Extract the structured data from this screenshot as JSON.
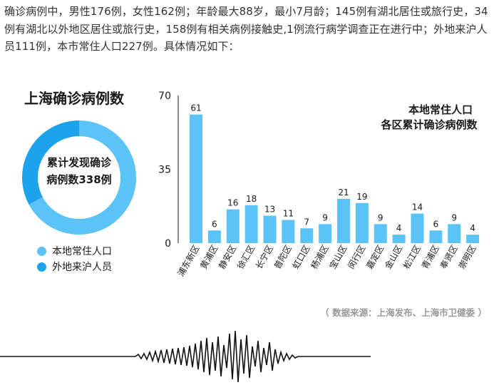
{
  "article": {
    "intro_text": "确诊病例中，男性176例，女性162例；年龄最大88岁，最小7月龄；145例有湖北居住或旅行史，34例有湖北以外地区居住或旅行史，158例有相关病例接触史,1例流行病学调查正在进行中；外地来沪人员111例，本市常住人口227例。具体情况如下："
  },
  "infographic": {
    "title": "上海确诊病例数",
    "donut_center_line1": "累计发现确诊",
    "donut_center_line2": "病例数338例",
    "legend": [
      {
        "label": "本地常住人口",
        "color": "#5bc3f5"
      },
      {
        "label": "外地来沪人员",
        "color": "#1ca3ec"
      }
    ],
    "source": "（ 数据来源：上海发布、上海市卫健委 ）"
  },
  "chart_data": [
    {
      "type": "pie",
      "title": "上海确诊病例数",
      "categories": [
        "本地常住人口",
        "外地来沪人员"
      ],
      "values": [
        227,
        111
      ],
      "total": 338,
      "colors": [
        "#5bc3f5",
        "#1ca3ec"
      ]
    },
    {
      "type": "bar",
      "title_line1": "本地常住人口",
      "title_line2": "各区累计确诊病例数",
      "categories": [
        "浦东新区",
        "黄浦区",
        "静安区",
        "徐汇区",
        "长宁区",
        "普陀区",
        "虹口区",
        "杨浦区",
        "宝山区",
        "闵行区",
        "嘉定区",
        "金山区",
        "松江区",
        "青浦区",
        "奉贤区",
        "崇明区"
      ],
      "values": [
        61,
        6,
        16,
        18,
        13,
        11,
        7,
        9,
        21,
        19,
        9,
        4,
        14,
        6,
        9,
        4
      ],
      "yticks": [
        0,
        35,
        70
      ],
      "ylim": [
        0,
        70
      ],
      "bar_color": "#5bc3f5",
      "grid": false
    }
  ]
}
